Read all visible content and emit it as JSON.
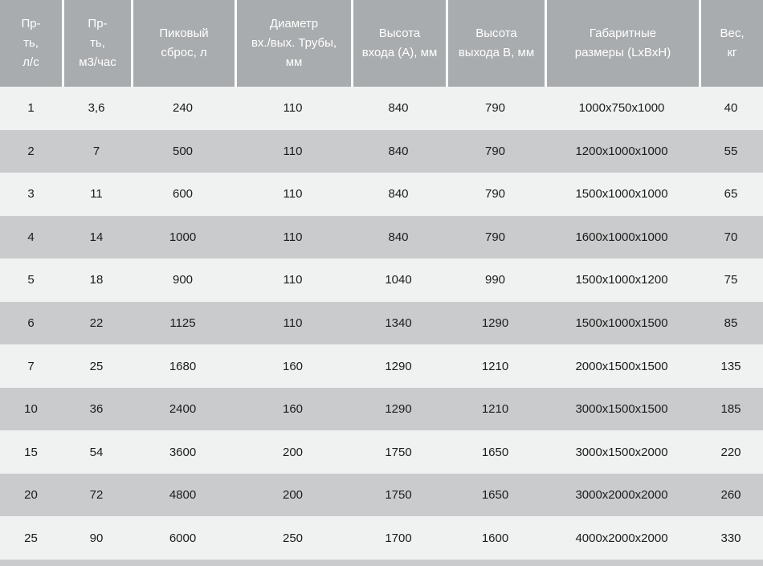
{
  "table": {
    "columns": [
      {
        "id": "productivity-ls",
        "label": "Пр-\nть,\nл/с"
      },
      {
        "id": "productivity-m3h",
        "label": "Пр-\nть,\nм3/час"
      },
      {
        "id": "peak-discharge",
        "label": "Пиковый\nсброс, л"
      },
      {
        "id": "pipe-diameter",
        "label": "Диаметр\nвх./вых. Трубы,\nмм"
      },
      {
        "id": "inlet-height",
        "label": "Высота\nвхода (А), мм"
      },
      {
        "id": "outlet-height",
        "label": "Высота\nвыхода В, мм"
      },
      {
        "id": "dimensions",
        "label": "Габаритные\nразмеры (LxBxH)"
      },
      {
        "id": "weight",
        "label": "Вес,\nкг"
      }
    ]
  },
  "colors": {
    "header_bg": "#a9acae",
    "header_text": "#ffffff",
    "row_light": "#f0f1f1",
    "row_dark": "#cacbcc",
    "cell_text": "#1c1c1c",
    "separator": "#ffffff"
  },
  "chart_data": {
    "type": "table",
    "columns": [
      "Пр-ть, л/с",
      "Пр-ть, м3/час",
      "Пиковый сброс, л",
      "Диаметр вх./вых. Трубы, мм",
      "Высота входа (А), мм",
      "Высота выхода В, мм",
      "Габаритные размеры (LxBxH)",
      "Вес, кг"
    ],
    "rows": [
      [
        "1",
        "3,6",
        "240",
        "110",
        "840",
        "790",
        "1000x750x1000",
        "40"
      ],
      [
        "2",
        "7",
        "500",
        "110",
        "840",
        "790",
        "1200x1000x1000",
        "55"
      ],
      [
        "3",
        "11",
        "600",
        "110",
        "840",
        "790",
        "1500x1000x1000",
        "65"
      ],
      [
        "4",
        "14",
        "1000",
        "110",
        "840",
        "790",
        "1600x1000x1000",
        "70"
      ],
      [
        "5",
        "18",
        "900",
        "110",
        "1040",
        "990",
        "1500x1000x1200",
        "75"
      ],
      [
        "6",
        "22",
        "1125",
        "110",
        "1340",
        "1290",
        "1500x1000x1500",
        "85"
      ],
      [
        "7",
        "25",
        "1680",
        "160",
        "1290",
        "1210",
        "2000x1500x1500",
        "135"
      ],
      [
        "10",
        "36",
        "2400",
        "160",
        "1290",
        "1210",
        "3000x1500x1500",
        "185"
      ],
      [
        "15",
        "54",
        "3600",
        "200",
        "1750",
        "1650",
        "3000x1500x2000",
        "220"
      ],
      [
        "20",
        "72",
        "4800",
        "200",
        "1750",
        "1650",
        "3000x2000x2000",
        "260"
      ],
      [
        "25",
        "90",
        "6000",
        "250",
        "1700",
        "1600",
        "4000x2000x2000",
        "330"
      ]
    ]
  }
}
